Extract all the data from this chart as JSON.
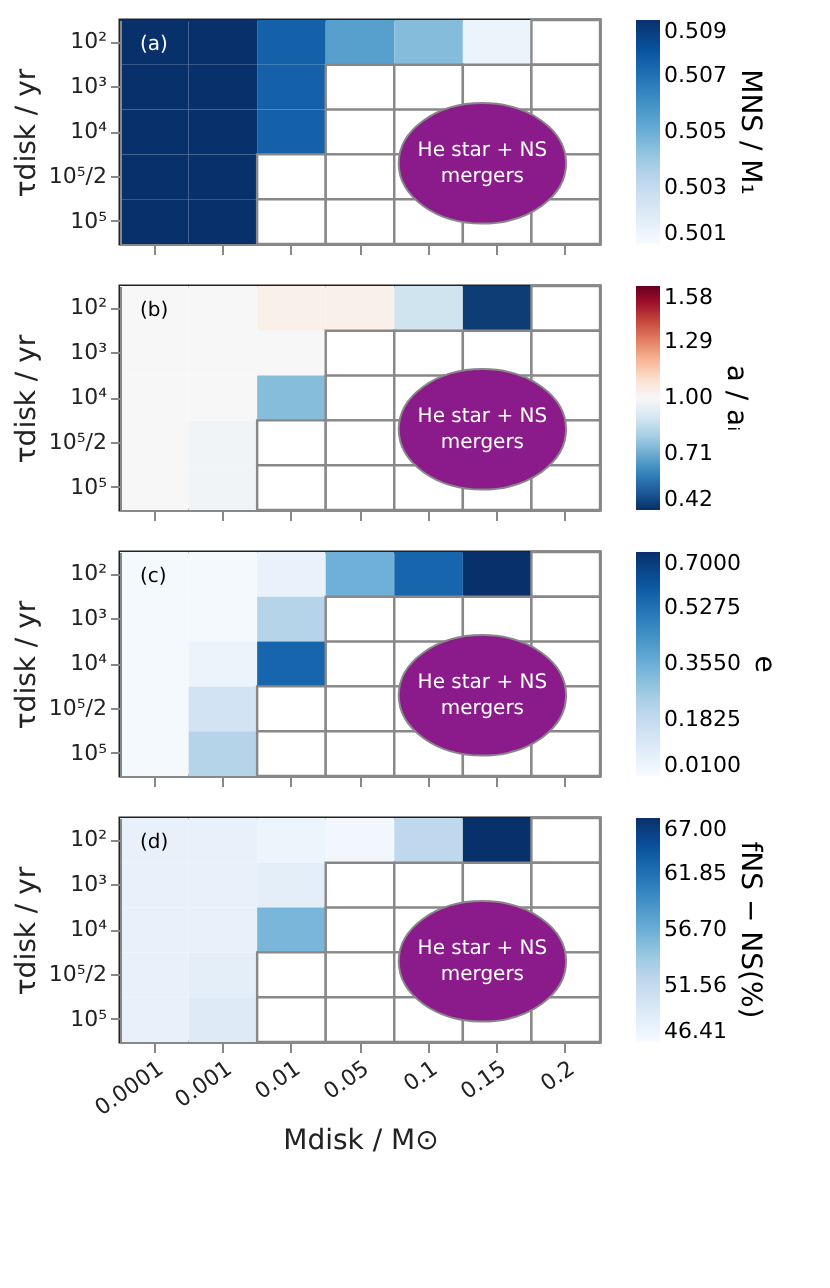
{
  "chart_data": [
    {
      "type": "heatmap",
      "ylabel": "τdisk / yr",
      "clabel": "MNS / M₁",
      "annotations": [
        "(a)",
        "He star + NS mergers"
      ],
      "tick_labels": "y",
      "categories": [
        "0.0001",
        "0.001",
        "0.01",
        "0.05",
        "0.1",
        "0.15",
        "0.2"
      ],
      "y_categories": [
        "10²",
        "10³",
        "10⁴",
        "10⁵/2",
        "10⁵"
      ],
      "cells": [
        [
          0.509,
          0.509,
          0.5075,
          0.5055,
          0.5045,
          0.5015,
          null
        ],
        [
          0.509,
          0.509,
          0.5075,
          null,
          null,
          null,
          null
        ],
        [
          0.509,
          0.509,
          0.5075,
          null,
          null,
          null,
          null
        ],
        [
          0.509,
          0.509,
          null,
          null,
          null,
          null,
          null
        ],
        [
          0.509,
          0.509,
          null,
          null,
          null,
          null,
          null
        ]
      ],
      "clim": [
        0.501,
        0.509
      ],
      "cticks": [
        0.501,
        0.503,
        0.505,
        0.507,
        0.509
      ]
    },
    {
      "type": "heatmap",
      "ylabel": "τdisk / yr",
      "clabel": "a / aᵢ",
      "annotations": [
        "(b)",
        "He star + NS mergers"
      ],
      "tick_labels": "y",
      "categories": [
        "0.0001",
        "0.001",
        "0.01",
        "0.05",
        "0.1",
        "0.15",
        "0.2"
      ],
      "y_categories": [
        "10²",
        "10³",
        "10⁴",
        "10⁵/2",
        "10⁵"
      ],
      "cells": [
        [
          1.0,
          1.0,
          1.03,
          1.03,
          0.88,
          0.45,
          null
        ],
        [
          1.0,
          1.0,
          1.0,
          null,
          null,
          null,
          null
        ],
        [
          1.0,
          1.0,
          0.75,
          null,
          null,
          null,
          null
        ],
        [
          1.0,
          0.98,
          null,
          null,
          null,
          null,
          null
        ],
        [
          1.0,
          0.98,
          null,
          null,
          null,
          null,
          null
        ]
      ],
      "clim": [
        0.42,
        1.58
      ],
      "cticks": [
        0.42,
        0.71,
        {
          "value": 1.0,
          "label": "1.00"
        },
        1.29,
        1.58
      ]
    },
    {
      "type": "heatmap",
      "ylabel": "τdisk / yr",
      "clabel": "e",
      "annotations": [
        "(c)",
        "He star + NS mergers"
      ],
      "tick_labels": "y",
      "categories": [
        "0.0001",
        "0.001",
        "0.01",
        "0.05",
        "0.1",
        "0.15",
        "0.2"
      ],
      "y_categories": [
        "10²",
        "10³",
        "10⁴",
        "10⁵/2",
        "10⁵"
      ],
      "cells": [
        [
          0.02,
          0.02,
          0.06,
          0.35,
          0.56,
          0.7,
          null
        ],
        [
          0.02,
          0.02,
          0.22,
          null,
          null,
          null,
          null
        ],
        [
          0.02,
          0.05,
          0.56,
          null,
          null,
          null,
          null
        ],
        [
          0.02,
          0.14,
          null,
          null,
          null,
          null,
          null
        ],
        [
          0.02,
          0.22,
          null,
          null,
          null,
          null,
          null
        ]
      ],
      "clim": [
        0.01,
        0.7
      ],
      "cticks": [
        {
          "value": 0.01,
          "label": "0.0100"
        },
        {
          "value": 0.1825,
          "label": "0.1825"
        },
        {
          "value": 0.355,
          "label": "0.3550"
        },
        {
          "value": 0.5275,
          "label": "0.5275"
        },
        {
          "value": 0.7,
          "label": "0.7000"
        }
      ]
    },
    {
      "type": "heatmap",
      "xlabel": "Mdisk / M⊙",
      "ylabel": "τdisk / yr",
      "clabel": "fNS − NS(%)",
      "annotations": [
        "(d)",
        "He star + NS mergers"
      ],
      "categories": [
        "0.0001",
        "0.001",
        "0.01",
        "0.05",
        "0.1",
        "0.15",
        "0.2"
      ],
      "y_categories": [
        "10²",
        "10³",
        "10⁴",
        "10⁵/2",
        "10⁵"
      ],
      "cells": [
        [
          48,
          48,
          47.5,
          47,
          52,
          67,
          null
        ],
        [
          48,
          48,
          48.5,
          null,
          null,
          null,
          null
        ],
        [
          48,
          48,
          56,
          null,
          null,
          null,
          null
        ],
        [
          48,
          48.5,
          null,
          null,
          null,
          null,
          null
        ],
        [
          48,
          49,
          null,
          null,
          null,
          null,
          null
        ]
      ],
      "clim": [
        46.41,
        67
      ],
      "cticks": [
        46.41,
        51.56,
        {
          "value": 56.7,
          "label": "56.70"
        },
        61.85,
        {
          "value": 67,
          "label": "67.00"
        }
      ]
    }
  ]
}
